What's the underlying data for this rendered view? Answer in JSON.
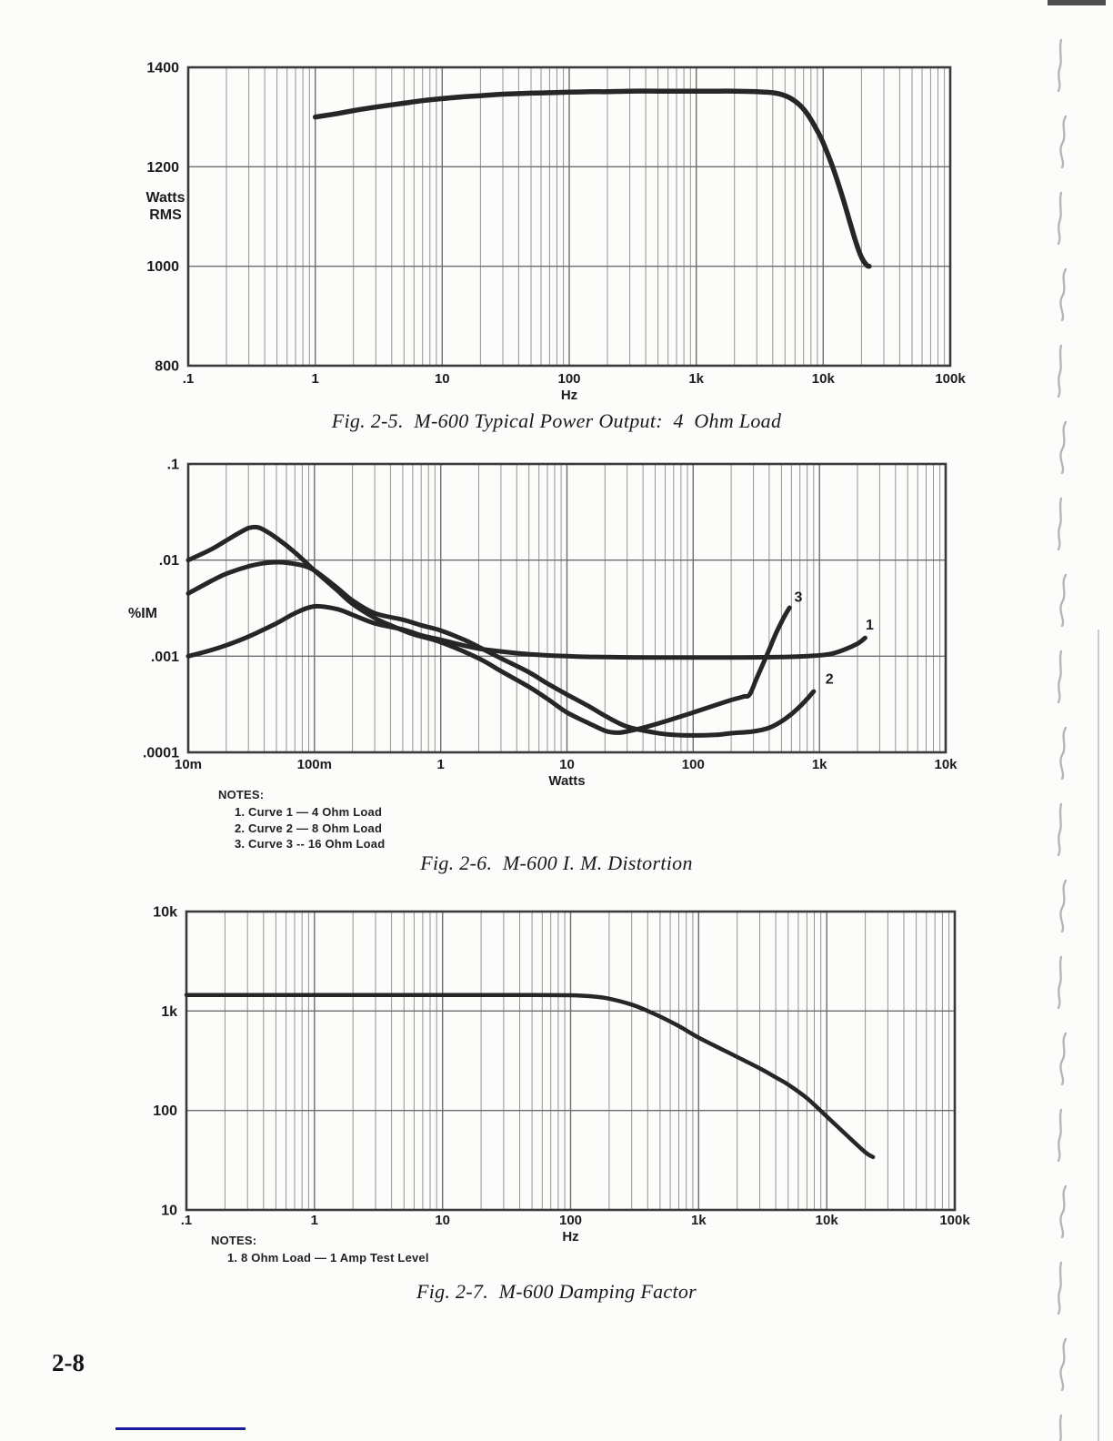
{
  "page": {
    "number": "2-8"
  },
  "colors": {
    "curve": "#262626",
    "grid_minor": "#949494",
    "grid_major": "#6d6d6d",
    "frame": "#3a3a3a",
    "underline_accent": "#1b1b9e"
  },
  "chart_data": [
    {
      "type": "line",
      "title": "Fig. 2-5.  M-600 Typical Power Output:  4  Ohm Load",
      "xlabel": "Hz",
      "ylabel": "Watts RMS",
      "ylabel_lines": [
        "Watts",
        "RMS"
      ],
      "xscale": "log",
      "yscale": "linear",
      "xlim": [
        0.1,
        100000
      ],
      "ylim": [
        800,
        1400
      ],
      "xtick_values": [
        0.1,
        1,
        10,
        100,
        1000,
        10000,
        100000
      ],
      "xtick_labels": [
        ".1",
        "1",
        "10",
        "100",
        "1k",
        "10k",
        "100k"
      ],
      "ytick_values": [
        800,
        1000,
        1200,
        1400
      ],
      "ytick_labels": [
        "800",
        "1000",
        "1200",
        "1400"
      ],
      "grid": "log-x full, major-y only",
      "legend": "none",
      "series": [
        {
          "name": "4 Ohm Load",
          "points": [
            [
              1,
              1300
            ],
            [
              1.5,
              1307
            ],
            [
              2,
              1313
            ],
            [
              3,
              1320
            ],
            [
              5,
              1328
            ],
            [
              7,
              1333
            ],
            [
              10,
              1337
            ],
            [
              15,
              1341
            ],
            [
              20,
              1343
            ],
            [
              30,
              1346
            ],
            [
              50,
              1348
            ],
            [
              70,
              1349
            ],
            [
              100,
              1350
            ],
            [
              150,
              1351
            ],
            [
              200,
              1351
            ],
            [
              300,
              1352
            ],
            [
              500,
              1352
            ],
            [
              700,
              1352
            ],
            [
              1000,
              1352
            ],
            [
              1500,
              1352
            ],
            [
              2000,
              1352
            ],
            [
              3000,
              1351
            ],
            [
              4000,
              1349
            ],
            [
              5000,
              1343
            ],
            [
              6000,
              1332
            ],
            [
              7000,
              1316
            ],
            [
              8000,
              1295
            ],
            [
              9000,
              1272
            ],
            [
              10000,
              1248
            ],
            [
              12000,
              1196
            ],
            [
              14000,
              1144
            ],
            [
              16000,
              1094
            ],
            [
              18000,
              1050
            ],
            [
              20000,
              1018
            ],
            [
              22000,
              1002
            ],
            [
              23000,
              1000
            ]
          ]
        }
      ]
    },
    {
      "type": "line",
      "title": "Fig. 2-6.  M-600 I. M. Distortion",
      "xlabel": "Watts",
      "ylabel": "%IM",
      "ylabel_lines": [
        "%IM"
      ],
      "xscale": "log",
      "yscale": "log",
      "xlim": [
        0.01,
        10000
      ],
      "ylim": [
        0.0001,
        0.1
      ],
      "xtick_values": [
        0.01,
        0.1,
        1,
        10,
        100,
        1000,
        10000
      ],
      "xtick_labels": [
        "10m",
        "100m",
        "1",
        "10",
        "100",
        "1k",
        "10k"
      ],
      "ytick_values": [
        0.0001,
        0.001,
        0.01,
        0.1
      ],
      "ytick_labels": [
        ".0001",
        ".001",
        ".01",
        ".1"
      ],
      "grid": "log-x full, decade-y only",
      "legend": "numbered curve labels on plot",
      "notes": {
        "heading": "NOTES:",
        "items": [
          "1. Curve 1 — 4 Ohm Load",
          "2. Curve 2 — 8 Ohm Load",
          "3. Curve 3 -- 16 Ohm Load"
        ]
      },
      "series": [
        {
          "name": "Curve 1 — 4 Ohm Load",
          "label": "1",
          "label_at": [
            2500,
            0.0019
          ],
          "points": [
            [
              0.01,
              0.001
            ],
            [
              0.015,
              0.00115
            ],
            [
              0.02,
              0.0013
            ],
            [
              0.03,
              0.0016
            ],
            [
              0.05,
              0.0022
            ],
            [
              0.07,
              0.0028
            ],
            [
              0.1,
              0.0033
            ],
            [
              0.15,
              0.0031
            ],
            [
              0.2,
              0.0027
            ],
            [
              0.3,
              0.0022
            ],
            [
              0.5,
              0.0019
            ],
            [
              0.7,
              0.00165
            ],
            [
              1,
              0.00148
            ],
            [
              1.5,
              0.0013
            ],
            [
              2,
              0.0012
            ],
            [
              3,
              0.00112
            ],
            [
              5,
              0.00105
            ],
            [
              10,
              0.001
            ],
            [
              20,
              0.00098
            ],
            [
              50,
              0.00097
            ],
            [
              100,
              0.00097
            ],
            [
              200,
              0.00097
            ],
            [
              500,
              0.00098
            ],
            [
              800,
              0.001
            ],
            [
              1200,
              0.00105
            ],
            [
              1600,
              0.00118
            ],
            [
              2000,
              0.00135
            ],
            [
              2300,
              0.00155
            ]
          ]
        },
        {
          "name": "Curve 2 — 8 Ohm Load",
          "label": "2",
          "label_at": [
            1200,
            0.00052
          ],
          "points": [
            [
              0.01,
              0.0045
            ],
            [
              0.015,
              0.006
            ],
            [
              0.02,
              0.0072
            ],
            [
              0.03,
              0.0086
            ],
            [
              0.04,
              0.0093
            ],
            [
              0.05,
              0.0095
            ],
            [
              0.06,
              0.0094
            ],
            [
              0.08,
              0.0088
            ],
            [
              0.1,
              0.0078
            ],
            [
              0.15,
              0.0052
            ],
            [
              0.2,
              0.0038
            ],
            [
              0.3,
              0.0028
            ],
            [
              0.5,
              0.0024
            ],
            [
              0.7,
              0.0021
            ],
            [
              1,
              0.00185
            ],
            [
              1.5,
              0.0015
            ],
            [
              2,
              0.00125
            ],
            [
              3,
              0.00095
            ],
            [
              5,
              0.00068
            ],
            [
              7,
              0.00052
            ],
            [
              10,
              0.0004
            ],
            [
              15,
              0.0003
            ],
            [
              20,
              0.00024
            ],
            [
              30,
              0.000185
            ],
            [
              50,
              0.00016
            ],
            [
              70,
              0.000152
            ],
            [
              100,
              0.00015
            ],
            [
              150,
              0.000152
            ],
            [
              200,
              0.000158
            ],
            [
              300,
              0.000165
            ],
            [
              400,
              0.00018
            ],
            [
              500,
              0.00021
            ],
            [
              600,
              0.00025
            ],
            [
              700,
              0.0003
            ],
            [
              800,
              0.00036
            ],
            [
              900,
              0.00043
            ]
          ]
        },
        {
          "name": "Curve 3 — 16 Ohm Load",
          "label": "3",
          "label_at": [
            680,
            0.0037
          ],
          "points": [
            [
              0.01,
              0.01
            ],
            [
              0.015,
              0.0128
            ],
            [
              0.02,
              0.016
            ],
            [
              0.025,
              0.019
            ],
            [
              0.03,
              0.0215
            ],
            [
              0.035,
              0.022
            ],
            [
              0.04,
              0.0205
            ],
            [
              0.05,
              0.017
            ],
            [
              0.07,
              0.012
            ],
            [
              0.1,
              0.0078
            ],
            [
              0.15,
              0.0049
            ],
            [
              0.2,
              0.0035
            ],
            [
              0.3,
              0.0025
            ],
            [
              0.4,
              0.0021
            ],
            [
              0.6,
              0.0017
            ],
            [
              1,
              0.0014
            ],
            [
              2,
              0.00095
            ],
            [
              3,
              0.0007
            ],
            [
              5,
              0.00048
            ],
            [
              7,
              0.00036
            ],
            [
              10,
              0.00026
            ],
            [
              15,
              0.0002
            ],
            [
              20,
              0.000168
            ],
            [
              25,
              0.00016
            ],
            [
              30,
              0.000165
            ],
            [
              40,
              0.00018
            ],
            [
              60,
              0.00021
            ],
            [
              100,
              0.00026
            ],
            [
              150,
              0.00031
            ],
            [
              200,
              0.00035
            ],
            [
              250,
              0.00038
            ],
            [
              280,
              0.0004
            ],
            [
              320,
              0.0006
            ],
            [
              380,
              0.001
            ],
            [
              450,
              0.0017
            ],
            [
              520,
              0.0025
            ],
            [
              580,
              0.0032
            ]
          ]
        }
      ]
    },
    {
      "type": "line",
      "title": "Fig. 2-7.  M-600 Damping Factor",
      "xlabel": "Hz",
      "ylabel": "",
      "ylabel_lines": [],
      "xscale": "log",
      "yscale": "log",
      "xlim": [
        0.1,
        100000
      ],
      "ylim": [
        10,
        10000
      ],
      "xtick_values": [
        0.1,
        1,
        10,
        100,
        1000,
        10000,
        100000
      ],
      "xtick_labels": [
        ".1",
        "1",
        "10",
        "100",
        "1k",
        "10k",
        "100k"
      ],
      "ytick_values": [
        10,
        100,
        1000,
        10000
      ],
      "ytick_labels": [
        "10",
        "100",
        "1k",
        "10k"
      ],
      "grid": "log-x full, decade-y only",
      "legend": "none",
      "notes": {
        "heading": "NOTES:",
        "items": [
          "1. 8 Ohm Load — 1 Amp Test Level"
        ]
      },
      "series": [
        {
          "name": "8 Ohm Load — 1 Amp Test Level",
          "points": [
            [
              0.1,
              1450
            ],
            [
              1,
              1450
            ],
            [
              10,
              1450
            ],
            [
              50,
              1450
            ],
            [
              100,
              1440
            ],
            [
              150,
              1400
            ],
            [
              200,
              1330
            ],
            [
              300,
              1160
            ],
            [
              400,
              1000
            ],
            [
              500,
              880
            ],
            [
              700,
              705
            ],
            [
              1000,
              540
            ],
            [
              1500,
              415
            ],
            [
              2000,
              345
            ],
            [
              3000,
              265
            ],
            [
              4000,
              215
            ],
            [
              5000,
              182
            ],
            [
              7000,
              133
            ],
            [
              10000,
              87
            ],
            [
              14000,
              58
            ],
            [
              20000,
              38
            ],
            [
              23000,
              34
            ]
          ]
        }
      ]
    }
  ]
}
